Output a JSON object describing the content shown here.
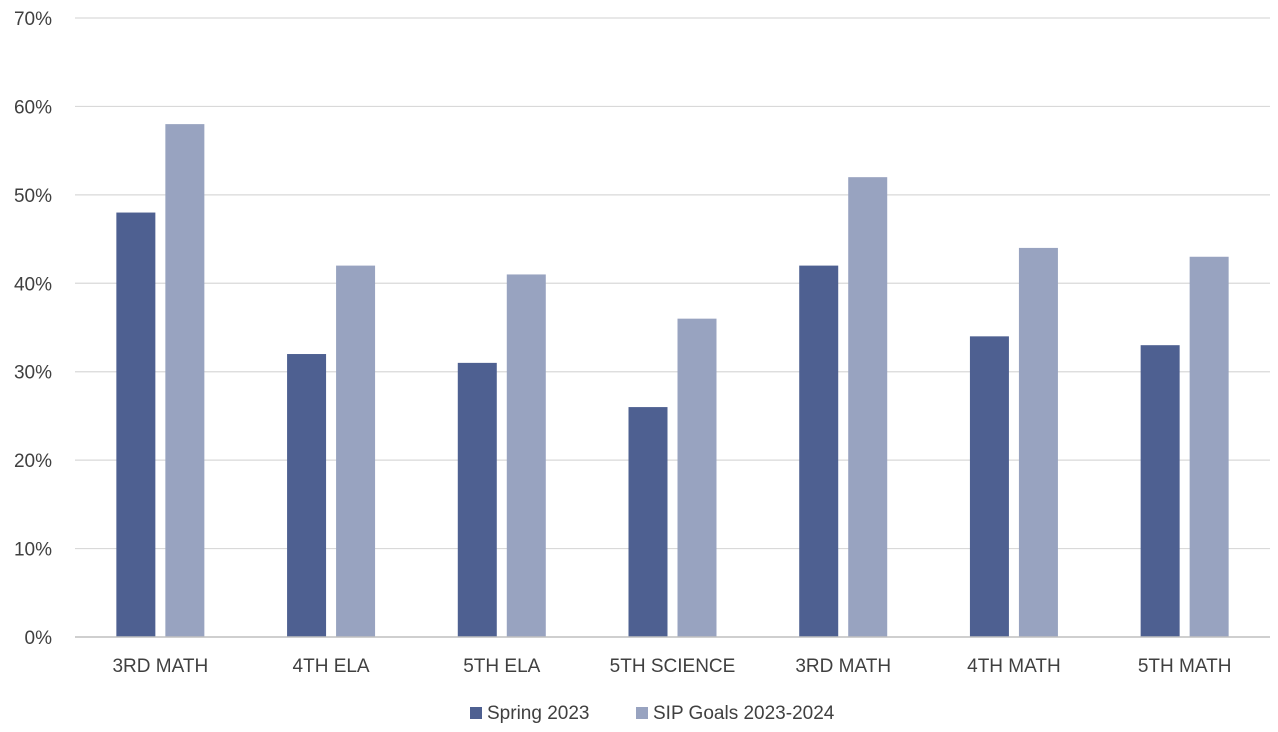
{
  "chart_data": {
    "type": "bar",
    "title": "",
    "xlabel": "",
    "ylabel": "",
    "categories": [
      "3RD MATH",
      "4TH ELA",
      "5TH ELA",
      "5TH SCIENCE",
      "3RD MATH",
      "4TH MATH",
      "5TH MATH"
    ],
    "series": [
      {
        "name": "Spring 2023",
        "color": "#4e6091",
        "values": [
          48,
          32,
          31,
          26,
          42,
          34,
          33
        ]
      },
      {
        "name": "SIP Goals 2023-2024",
        "color": "#98a3c0",
        "values": [
          58,
          42,
          41,
          36,
          52,
          44,
          43
        ]
      }
    ],
    "ylim": [
      0,
      70
    ],
    "yticks": [
      0,
      10,
      20,
      30,
      40,
      50,
      60,
      70
    ],
    "ytick_labels": [
      "0%",
      "10%",
      "20%",
      "30%",
      "40%",
      "50%",
      "60%",
      "70%"
    ],
    "grid": true,
    "legend_position": "bottom"
  }
}
